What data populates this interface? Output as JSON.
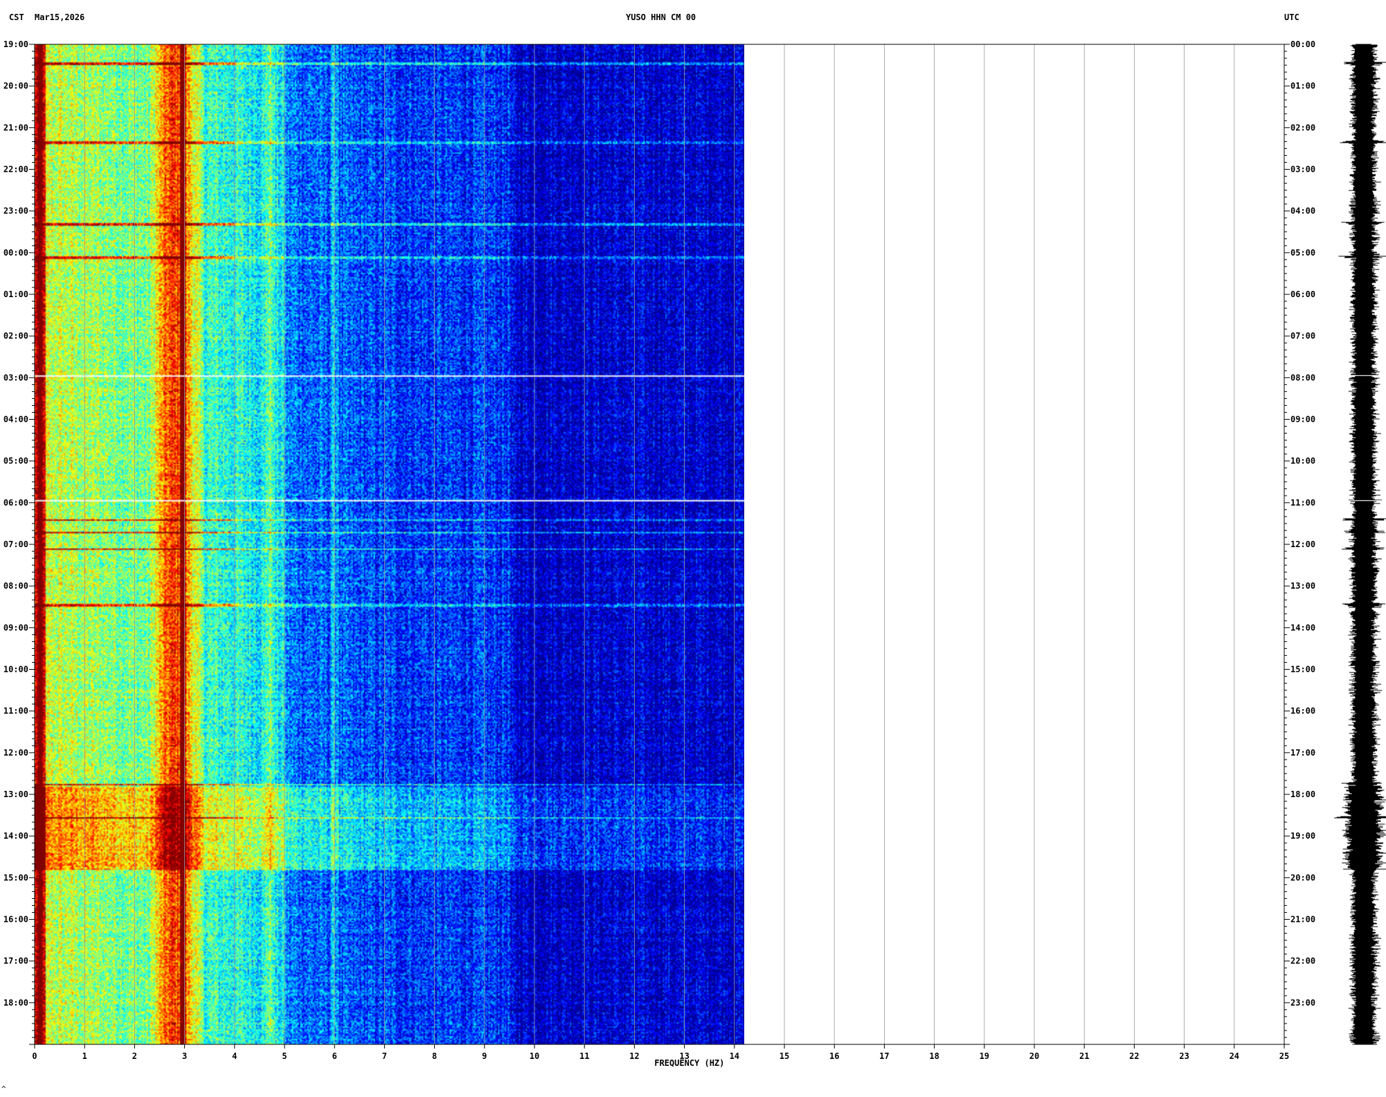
{
  "header": {
    "left_tz": "CST",
    "date": "Mar15,2026",
    "station": "YUSO HHN CM 00",
    "right_tz": "UTC"
  },
  "chart_data": {
    "type": "heatmap",
    "title": "YUSO HHN CM 00",
    "xlabel": "FREQUENCY (HZ)",
    "x_ticks": [
      "0",
      "1",
      "2",
      "3",
      "4",
      "5",
      "6",
      "7",
      "8",
      "9",
      "10",
      "11",
      "12",
      "13",
      "14",
      "15",
      "16",
      "17",
      "18",
      "19",
      "20",
      "21",
      "22",
      "23",
      "24",
      "25"
    ],
    "xlim": [
      0,
      25
    ],
    "data_fmax_hz": 14.2,
    "y_left_label": "CST",
    "y_left_ticks": [
      "19:00",
      "20:00",
      "21:00",
      "22:00",
      "23:00",
      "00:00",
      "01:00",
      "02:00",
      "03:00",
      "04:00",
      "05:00",
      "06:00",
      "07:00",
      "08:00",
      "09:00",
      "10:00",
      "11:00",
      "12:00",
      "13:00",
      "14:00",
      "15:00",
      "16:00",
      "17:00",
      "18:00"
    ],
    "y_right_label": "UTC",
    "y_right_ticks": [
      "00:00",
      "01:00",
      "02:00",
      "03:00",
      "04:00",
      "05:00",
      "06:00",
      "07:00",
      "08:00",
      "09:00",
      "10:00",
      "11:00",
      "12:00",
      "13:00",
      "14:00",
      "15:00",
      "16:00",
      "17:00",
      "18:00",
      "19:00",
      "20:00",
      "21:00",
      "22:00",
      "23:00"
    ],
    "duration_hours": 24,
    "colormap": [
      "#00008f",
      "#0000ff",
      "#0080ff",
      "#00ffff",
      "#80ff80",
      "#ffff00",
      "#ff8000",
      "#ff0000",
      "#800000"
    ],
    "dominant_band_hz": [
      2.3,
      3.3
    ],
    "peak_line_hz": 2.95,
    "secondary_bands_hz": [
      0.1,
      4.7,
      6.0
    ],
    "elevated_period_hours": [
      17.8,
      19.8
    ],
    "gaps_hours": [
      7.95,
      10.95
    ],
    "events_hours": [
      0.45,
      2.35,
      4.3,
      5.1,
      11.4,
      11.7,
      12.1,
      13.45,
      17.75,
      18.55
    ],
    "footer_mark": "^"
  }
}
